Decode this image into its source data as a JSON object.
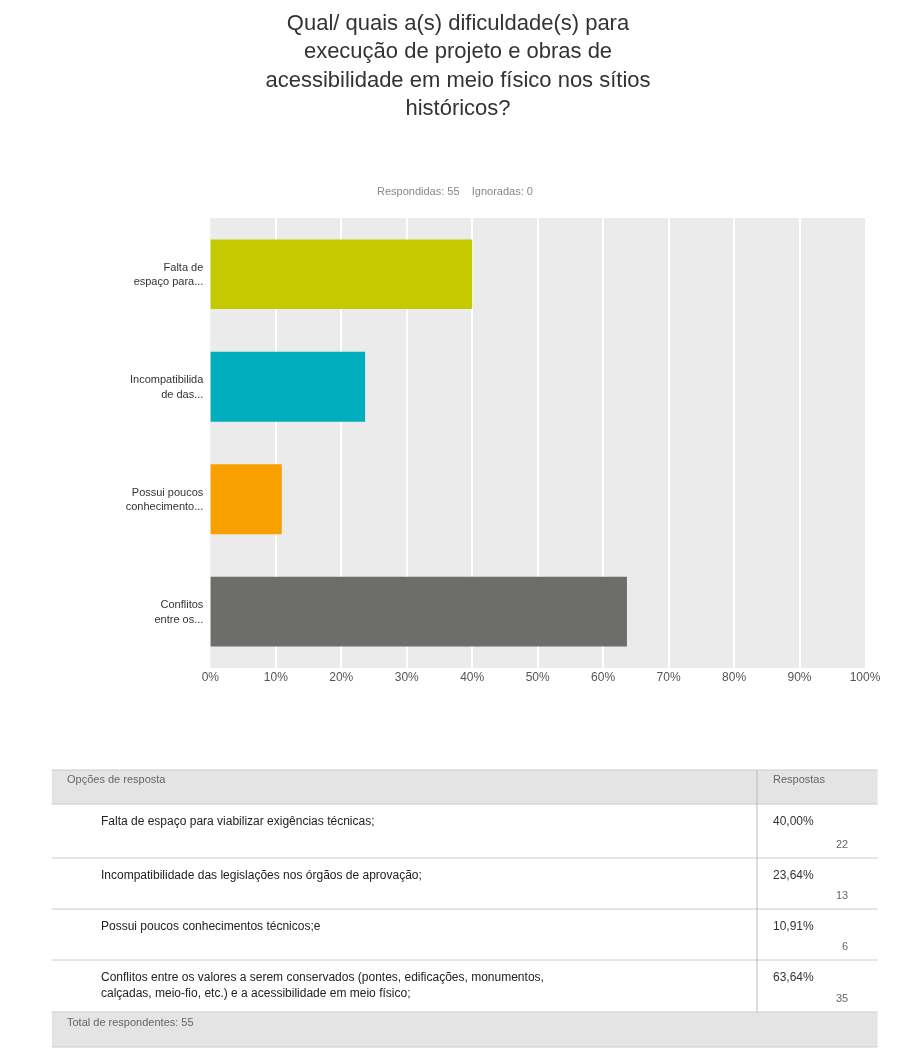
{
  "chart_data": {
    "type": "bar",
    "orientation": "horizontal",
    "title": "Qual/ quais a(s) dificuldade(s) para execução de projeto e obras de acessibilidade em meio físico nos sítios históricos?",
    "subtitle": "Respondidas: 55    Ignoradas: 0",
    "categories": [
      "Falta de espaço para...",
      "Incompatibilida de das...",
      "Possui poucos conhecimento...",
      "Conflitos entre os..."
    ],
    "values": [
      40.0,
      23.64,
      10.91,
      63.64
    ],
    "colors": [
      "#c4c900",
      "#00aebd",
      "#f7a000",
      "#6d6d6b"
    ],
    "xlim": [
      0,
      100
    ],
    "xticks": [
      {
        "value": 0,
        "label": "0%"
      },
      {
        "value": 10,
        "label": "10%"
      },
      {
        "value": 20,
        "label": "20%"
      },
      {
        "value": 30,
        "label": "30%"
      },
      {
        "value": 40,
        "label": "40%"
      },
      {
        "value": 50,
        "label": "50%"
      },
      {
        "value": 60,
        "label": "60%"
      },
      {
        "value": 70,
        "label": "70%"
      },
      {
        "value": 80,
        "label": "80%"
      },
      {
        "value": 90,
        "label": "90%"
      },
      {
        "value": 100,
        "label": "100%"
      }
    ],
    "grid": "x",
    "annotations": [
      "Opções de resposta",
      "Respostas",
      "Falta de espaço para viabilizar exigências técnicas;",
      "40,00%",
      "22",
      "Incompatibilidade das legislações nos órgãos de aprovação;",
      "23,64%",
      "13",
      "Possui poucos conhecimentos técnicos;e",
      "10,91%",
      "6",
      "Conflitos entre os valores a serem conservados (pontes, edificações, monumentos, calçadas, meio-fio, etc.) e a acessibilidade em meio físico;",
      "63,64%",
      "35",
      "Total de respondentes: 55"
    ]
  }
}
